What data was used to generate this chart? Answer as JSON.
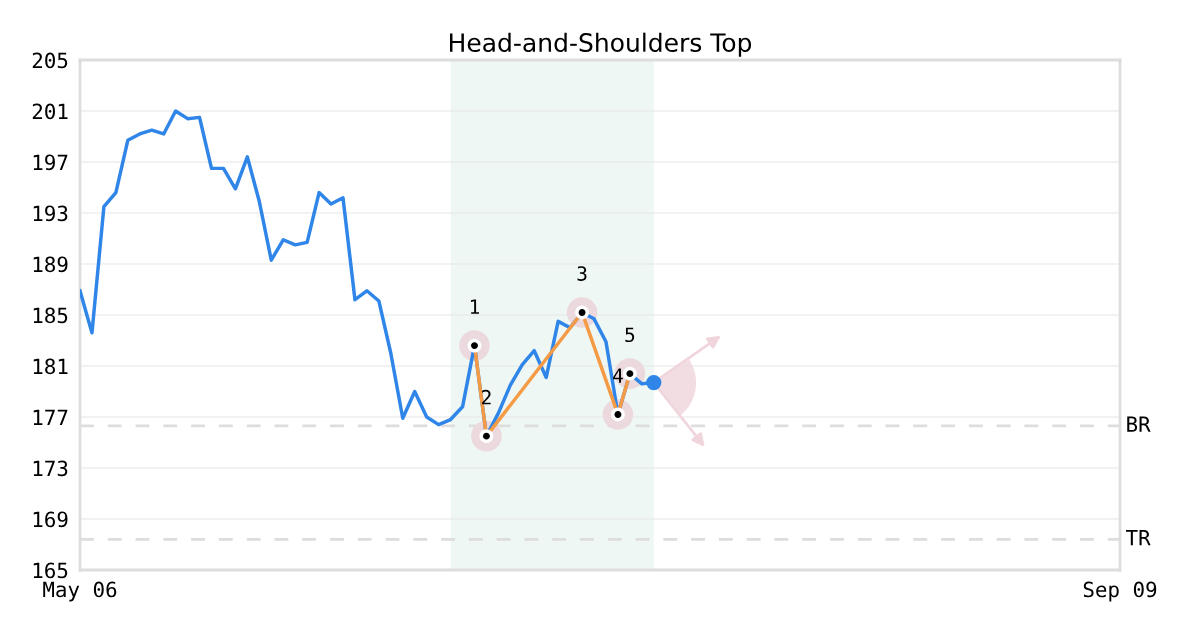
{
  "chart_data": {
    "type": "line",
    "title": "Head-and-Shoulders Top",
    "categories": [
      "May 06",
      null,
      null,
      null,
      null,
      null,
      null,
      null,
      null,
      null,
      null,
      null,
      null,
      null,
      null,
      null,
      null,
      null,
      null,
      null,
      null,
      null,
      null,
      null,
      null,
      null,
      null,
      null,
      null,
      null,
      null,
      null,
      null,
      null,
      null,
      null,
      null,
      null,
      null,
      null,
      null,
      null,
      null,
      null,
      null,
      null,
      null,
      null,
      null,
      null,
      null,
      null,
      null,
      null,
      null,
      null,
      null,
      null,
      null,
      null,
      null,
      null,
      null,
      null,
      null,
      null,
      null,
      null,
      null,
      null,
      null,
      null,
      null,
      null,
      null,
      null,
      null,
      null,
      null,
      null,
      null,
      null,
      null,
      null,
      null,
      null,
      null,
      "Sep 09"
    ],
    "ylim": [
      165,
      205
    ],
    "yticks": [
      165,
      169,
      173,
      177,
      181,
      185,
      189,
      193,
      197,
      201,
      205
    ],
    "grid": "y",
    "legend": false,
    "series": [
      {
        "color": "#2f86e8",
        "marker": "none",
        "values": [
          186.9,
          183.6,
          193.5,
          194.6,
          198.7,
          199.2,
          199.5,
          199.2,
          201.0,
          200.4,
          200.5,
          196.5,
          196.5,
          194.9,
          197.4,
          193.9,
          189.3,
          190.9,
          190.5,
          190.7,
          194.6,
          193.7,
          194.2,
          186.2,
          186.9,
          186.1,
          182.0,
          176.9,
          179.0,
          177.0,
          176.4,
          176.8,
          177.8,
          182.6,
          175.5,
          177.3,
          179.5,
          181.1,
          182.2,
          180.1,
          184.5,
          184.0,
          185.2,
          184.7,
          182.9,
          177.2,
          180.4,
          179.6,
          179.7,
          null,
          null,
          null,
          null,
          null,
          null,
          null,
          null,
          null,
          null,
          null,
          null,
          null,
          null,
          null,
          null,
          null,
          null,
          null,
          null,
          null,
          null,
          null,
          null,
          null,
          null,
          null,
          null,
          null,
          null,
          null,
          null,
          null,
          null,
          null,
          null,
          null,
          null,
          null
        ]
      },
      {
        "color": "#f59a45",
        "marker": "circle",
        "values": [
          null,
          null,
          null,
          null,
          null,
          null,
          null,
          null,
          null,
          null,
          null,
          null,
          null,
          null,
          null,
          null,
          null,
          null,
          null,
          null,
          null,
          null,
          null,
          null,
          null,
          null,
          null,
          null,
          null,
          null,
          null,
          null,
          null,
          182.6,
          175.5,
          null,
          null,
          null,
          null,
          null,
          null,
          null,
          185.2,
          null,
          null,
          177.2,
          180.4,
          null,
          null,
          null,
          null,
          null,
          null,
          null,
          null,
          null,
          null,
          null,
          null,
          null,
          null,
          null,
          null,
          null,
          null,
          null,
          null,
          null,
          null,
          null,
          null,
          null,
          null,
          null,
          null,
          null,
          null,
          null,
          null,
          null,
          null,
          null,
          null,
          null,
          null,
          null,
          null,
          null
        ]
      }
    ],
    "annotations": [
      {
        "text": "1",
        "y": 182.6
      },
      {
        "text": "2",
        "y": 175.5
      },
      {
        "text": "3",
        "y": 185.2
      },
      {
        "text": "4",
        "y": 177.2
      },
      {
        "text": "5",
        "y": 180.4
      }
    ],
    "ref_lines": [
      {
        "axis": "y",
        "value": 176.3,
        "label": "BR",
        "color": "#dddddd",
        "line_style": "dashed"
      },
      {
        "axis": "y",
        "value": 167.4,
        "label": "TR",
        "color": "#dddddd",
        "line_style": "dashed"
      }
    ]
  }
}
